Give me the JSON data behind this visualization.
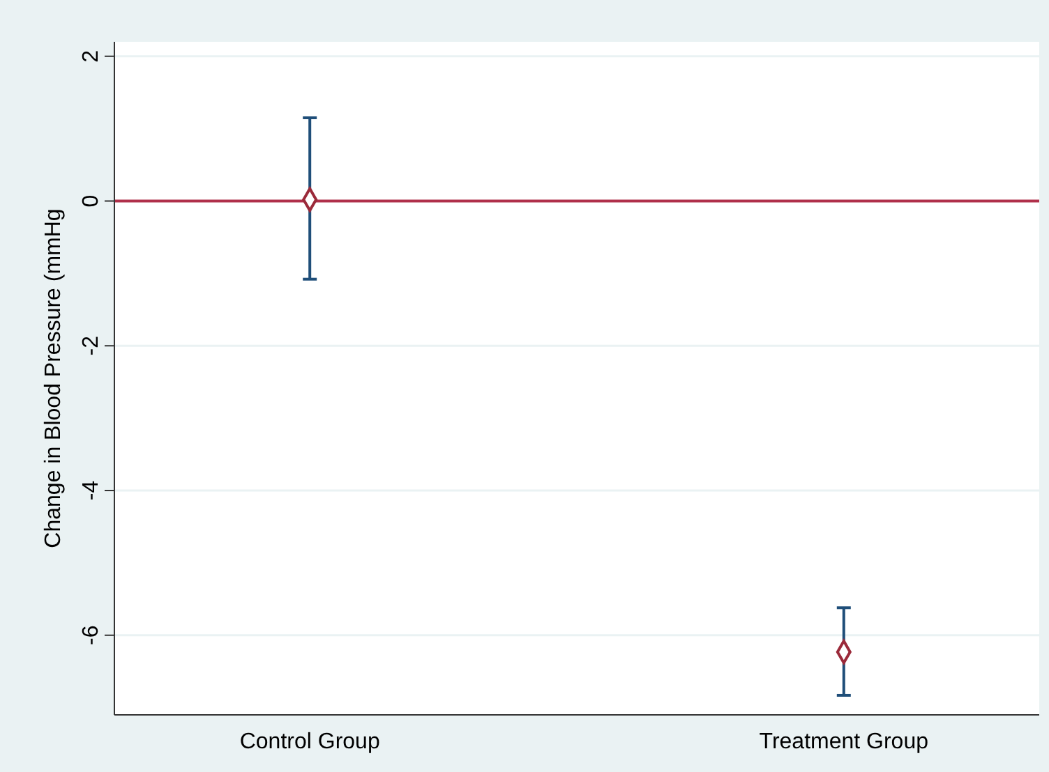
{
  "chart_data": {
    "type": "scatter",
    "ylabel": "Change in Blood Pressure (mmHg",
    "categories": [
      "Control Group",
      "Treatment Group"
    ],
    "values": [
      0.02,
      -6.23
    ],
    "errors": [
      [
        -1.08,
        1.15
      ],
      [
        -6.83,
        -5.62
      ]
    ],
    "color": "#9b2a3a",
    "marker": "diamond",
    "ylim": [
      -7.1,
      2.2
    ],
    "yticks": [
      -6,
      -4,
      -2,
      0,
      2
    ],
    "grid": "y",
    "ref_lines": [
      {
        "axis": "y",
        "value": 0,
        "color": "#b0304a"
      }
    ]
  }
}
